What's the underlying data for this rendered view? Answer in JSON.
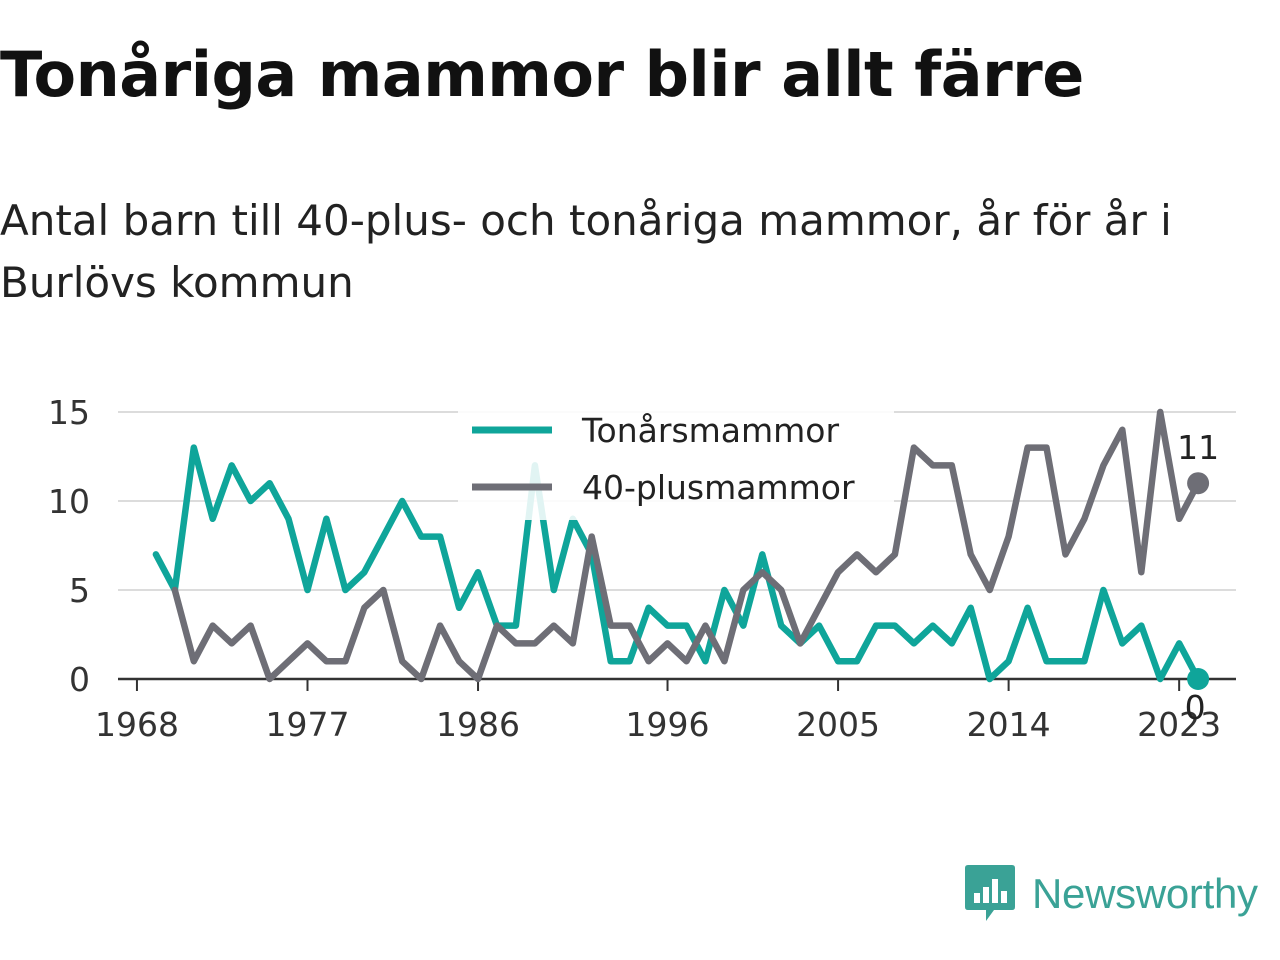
{
  "title": "Tonåriga mammor blir allt färre",
  "subtitle": "Antal barn till 40-plus- och tonåriga mammor, år för år i Burlövs kommun",
  "brand": {
    "name": "Newsworthy",
    "icon": "newsworthy-logo-icon",
    "color": "#3aa296"
  },
  "chart_data": {
    "type": "line",
    "x_tick_labels": [
      "1968",
      "1977",
      "1986",
      "1996",
      "2005",
      "2014",
      "2023"
    ],
    "y_tick_labels": [
      "0",
      "5",
      "10",
      "15"
    ],
    "ylim": [
      0,
      15
    ],
    "xlim": [
      1967,
      2026
    ],
    "grid": true,
    "legend_position": "top-center",
    "series": [
      {
        "name": "Tonårsmammor",
        "color": "#0fa59a",
        "start_year": 1969,
        "values": [
          7,
          5,
          13,
          9,
          12,
          10,
          11,
          9,
          5,
          9,
          5,
          6,
          8,
          10,
          8,
          8,
          4,
          6,
          3,
          3,
          12,
          5,
          9,
          7,
          1,
          1,
          4,
          3,
          3,
          1,
          5,
          3,
          7,
          3,
          2,
          3,
          1,
          1,
          3,
          3,
          2,
          3,
          2,
          4,
          0,
          1,
          4,
          1,
          1,
          1,
          5,
          2,
          3,
          0,
          2,
          0
        ],
        "end_label": "0"
      },
      {
        "name": "40-plusmammor",
        "color": "#6e6e76",
        "start_year": 1970,
        "values": [
          5,
          1,
          3,
          2,
          3,
          0,
          1,
          2,
          1,
          1,
          4,
          5,
          1,
          0,
          3,
          1,
          0,
          3,
          2,
          2,
          3,
          2,
          8,
          3,
          3,
          1,
          2,
          1,
          3,
          1,
          5,
          6,
          5,
          2,
          4,
          6,
          7,
          6,
          7,
          13,
          12,
          12,
          7,
          5,
          8,
          13,
          13,
          7,
          9,
          12,
          14,
          6,
          15,
          9,
          11
        ],
        "end_label": "11"
      }
    ]
  }
}
